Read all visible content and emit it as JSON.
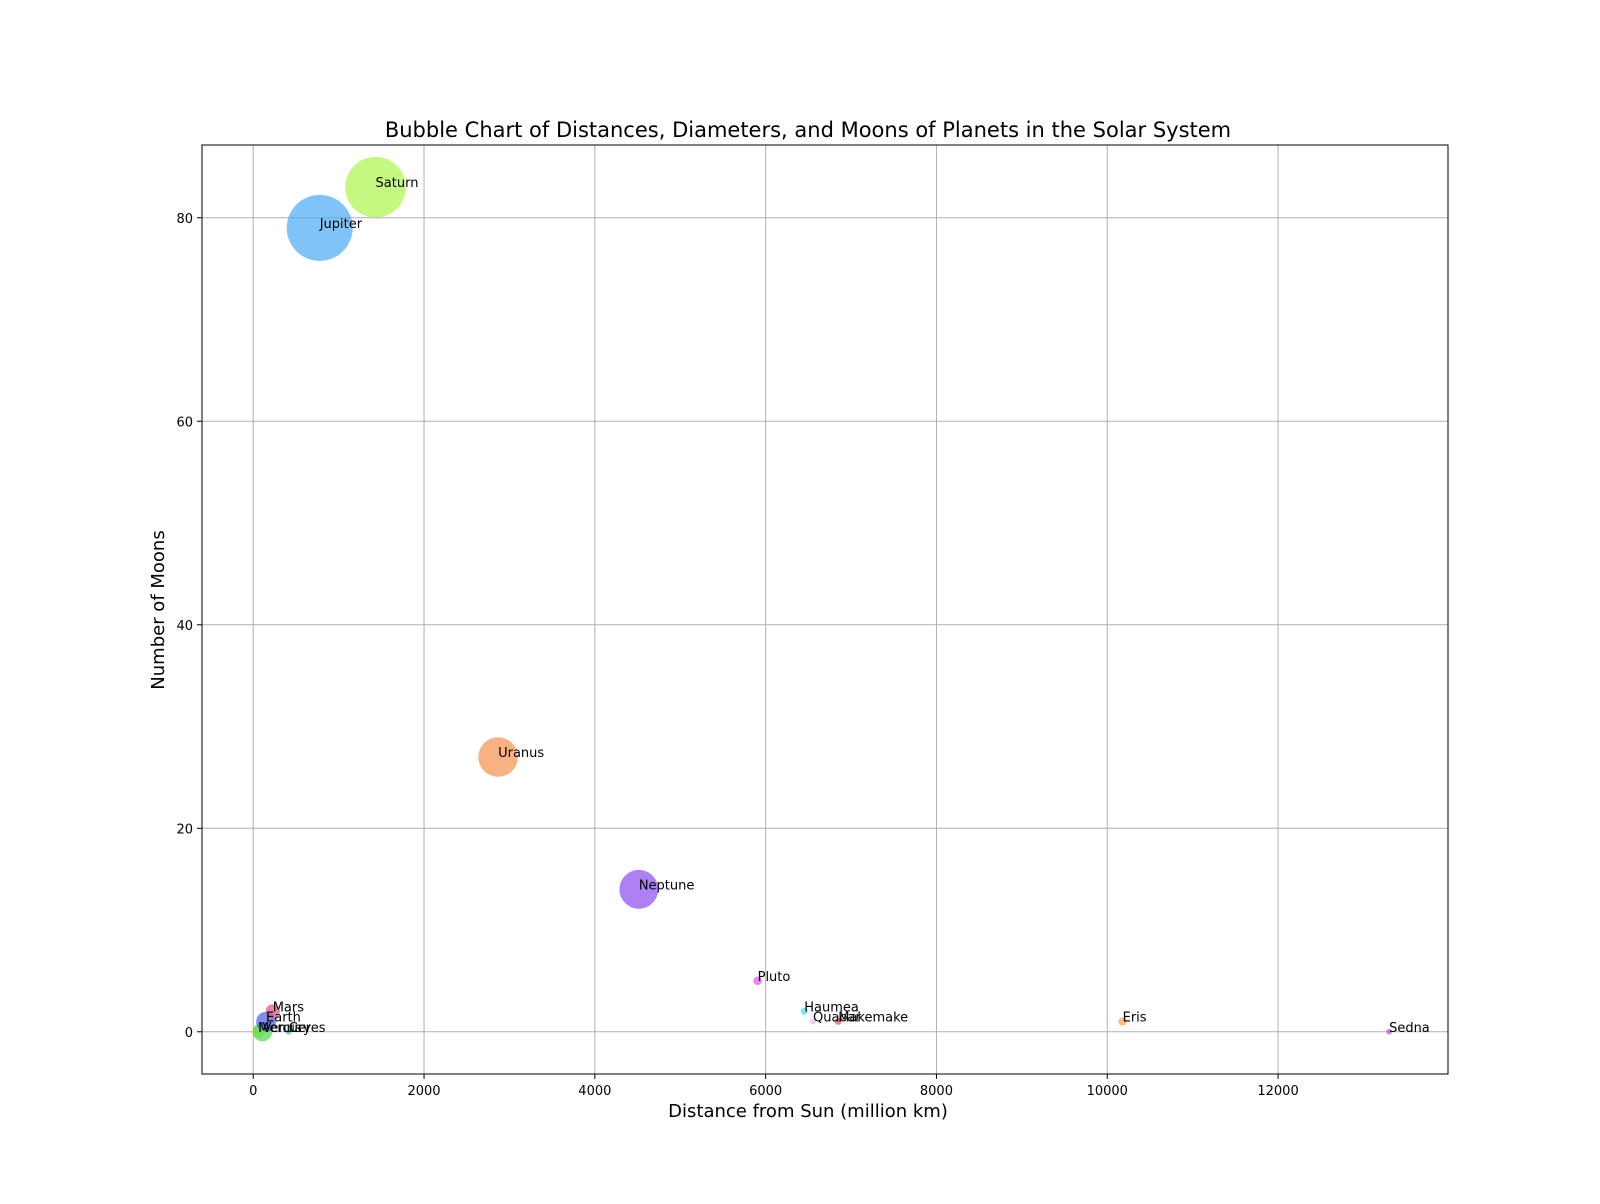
{
  "chart_data": {
    "type": "scatter",
    "title": "Bubble Chart of Distances, Diameters, and Moons of Planets in the Solar System",
    "xlabel": "Distance from Sun (million km)",
    "ylabel": "Number of Moons",
    "xlim": [
      -600,
      13990
    ],
    "ylim": [
      -4.15,
      87.15
    ],
    "xticks": [
      0,
      2000,
      4000,
      6000,
      8000,
      10000,
      12000
    ],
    "yticks": [
      0,
      20,
      40,
      60,
      80
    ],
    "grid": true,
    "legend": "none",
    "bubble_size_field": "diameter (km)",
    "points": [
      {
        "label": "Mercury",
        "x": 57.9,
        "y": 0,
        "diameter": 4879,
        "color": "#e6e04a"
      },
      {
        "label": "Venus",
        "x": 108.2,
        "y": 0,
        "diameter": 12104,
        "color": "#4ad84a"
      },
      {
        "label": "Earth",
        "x": 149.6,
        "y": 1,
        "diameter": 12756,
        "color": "#4a5ee6"
      },
      {
        "label": "Mars",
        "x": 227.9,
        "y": 2,
        "diameter": 6792,
        "color": "#e64a8c"
      },
      {
        "label": "Ceres",
        "x": 413.7,
        "y": 0,
        "diameter": 940,
        "color": "#4ab0a0"
      },
      {
        "label": "Jupiter",
        "x": 778.5,
        "y": 79,
        "diameter": 142984,
        "color": "#4aaaf5"
      },
      {
        "label": "Saturn",
        "x": 1432,
        "y": 83,
        "diameter": 120536,
        "color": "#acf54a"
      },
      {
        "label": "Uranus",
        "x": 2867,
        "y": 27,
        "diameter": 51118,
        "color": "#f5904a"
      },
      {
        "label": "Neptune",
        "x": 4515,
        "y": 14,
        "diameter": 49528,
        "color": "#8a4af0"
      },
      {
        "label": "Pluto",
        "x": 5906,
        "y": 5,
        "diameter": 2370,
        "color": "#e64af0"
      },
      {
        "label": "Haumea",
        "x": 6452,
        "y": 2,
        "diameter": 1632,
        "color": "#4ad8e6"
      },
      {
        "label": "Quaoar",
        "x": 6555,
        "y": 1,
        "diameter": 1110,
        "color": "#f0b4f0"
      },
      {
        "label": "Makemake",
        "x": 6850,
        "y": 1,
        "diameter": 1430,
        "color": "#e64a4a"
      },
      {
        "label": "Eris",
        "x": 10180,
        "y": 1,
        "diameter": 2326,
        "color": "#f5a64a"
      },
      {
        "label": "Sedna",
        "x": 13300,
        "y": 0,
        "diameter": 995,
        "color": "#a65ae6"
      }
    ]
  }
}
